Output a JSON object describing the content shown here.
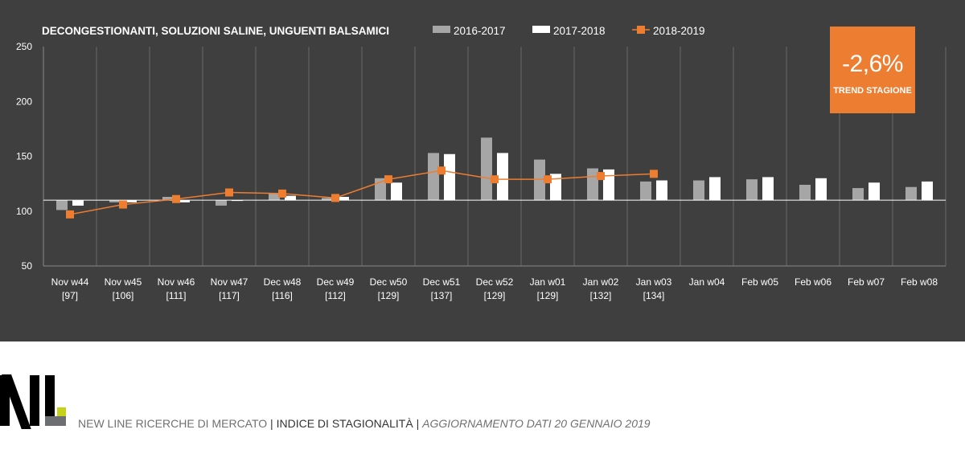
{
  "chart_data": {
    "type": "bar",
    "title": "DECONGESTIONANTI, SOLUZIONI SALINE, UNGUENTI BALSAMICI",
    "categories": [
      "Nov w44",
      "Nov w45",
      "Nov w46",
      "Nov w47",
      "Dec w48",
      "Dec w49",
      "Dec w50",
      "Dec w51",
      "Dec w52",
      "Jan w01",
      "Jan w02",
      "Jan w03",
      "Jan w04",
      "Feb w05",
      "Feb w06",
      "Feb w07",
      "Feb w08"
    ],
    "category_values": [
      "[97]",
      "[106]",
      "[111]",
      "[117]",
      "[116]",
      "[112]",
      "[129]",
      "[137]",
      "[129]",
      "[129]",
      "[132]",
      "[134]",
      "",
      "",
      "",
      "",
      ""
    ],
    "baseline": 110,
    "ylim": [
      50,
      250
    ],
    "yticks": [
      "250",
      "200",
      "150",
      "100",
      "50"
    ],
    "grid": true,
    "legend_position": "top",
    "series": [
      {
        "name": "2016-2017",
        "type": "bar",
        "color": "#a6a6a6",
        "values": [
          101,
          108,
          113,
          105,
          116,
          112,
          130,
          153,
          167,
          147,
          139,
          127,
          128,
          129,
          124,
          121,
          122
        ]
      },
      {
        "name": "2017-2018",
        "type": "bar",
        "color": "#ffffff",
        "values": [
          105,
          108,
          108,
          110,
          114,
          113,
          126,
          152,
          153,
          134,
          138,
          128,
          131,
          131,
          130,
          126,
          127
        ]
      },
      {
        "name": "2018-2019",
        "type": "line",
        "color": "#ed7d31",
        "values": [
          97,
          106,
          111,
          117,
          116,
          112,
          129,
          137,
          129,
          129,
          132,
          134,
          null,
          null,
          null,
          null,
          null
        ]
      }
    ]
  },
  "trend": {
    "value": "-2,6%",
    "label": "TREND STAGIONE"
  },
  "footer": {
    "company": "NEW LINE RICERCHE DI MERCATO",
    "sep1": " | ",
    "index": "INDICE DI STAGIONALITÀ",
    "sep2": " | ",
    "update": "AGGIORNAMENTO DATI  20 GENNAIO 2019"
  },
  "colors": {
    "background": "#3f3f3f",
    "accent": "#ed7d31",
    "logo_dot": "#c6d219"
  }
}
